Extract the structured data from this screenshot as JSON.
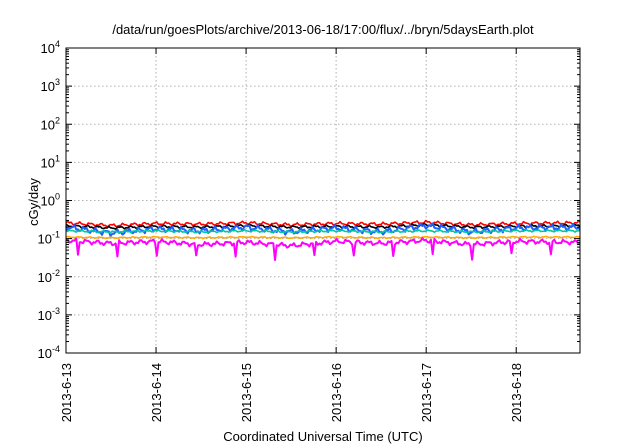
{
  "chart_data": {
    "type": "line",
    "title": "/data/run/goesPlots/archive/2013-06-18/17:00/flux/../bryn/5daysEarth.plot",
    "xlabel": "Coordinated Universal Time (UTC)",
    "ylabel": "cGy/day",
    "yscale": "log",
    "ylim": [
      0.0001,
      10000
    ],
    "xlim": [
      "2013-06-13 00:00",
      "2013-06-18 17:00"
    ],
    "grid": true,
    "legend": "none",
    "y_ticks": [
      {
        "value": 0.0001,
        "base": "10",
        "exp": "-4"
      },
      {
        "value": 0.001,
        "base": "10",
        "exp": "-3"
      },
      {
        "value": 0.01,
        "base": "10",
        "exp": "-2"
      },
      {
        "value": 0.1,
        "base": "10",
        "exp": "-1"
      },
      {
        "value": 1,
        "base": "10",
        "exp": "0"
      },
      {
        "value": 10,
        "base": "10",
        "exp": "1"
      },
      {
        "value": 100,
        "base": "10",
        "exp": "2"
      },
      {
        "value": 1000,
        "base": "10",
        "exp": "3"
      },
      {
        "value": 10000,
        "base": "10",
        "exp": "4"
      }
    ],
    "x_ticks": [
      "2013-6-13",
      "2013-6-14",
      "2013-6-15",
      "2013-6-16",
      "2013-6-17",
      "2013-6-18"
    ],
    "series": [
      {
        "color": "#ff0000",
        "x": [
          "2013-06-13 00:00",
          "2013-06-13 12:00",
          "2013-06-14 00:00",
          "2013-06-14 12:00",
          "2013-06-15 00:00",
          "2013-06-15 12:00",
          "2013-06-16 00:00",
          "2013-06-16 12:00",
          "2013-06-17 00:00",
          "2013-06-17 12:00",
          "2013-06-18 00:00",
          "2013-06-18 17:00"
        ],
        "y": [
          0.26,
          0.22,
          0.25,
          0.24,
          0.26,
          0.23,
          0.25,
          0.24,
          0.27,
          0.23,
          0.25,
          0.26
        ]
      },
      {
        "color": "#000000",
        "x": [
          "2013-06-13 00:00",
          "2013-06-13 12:00",
          "2013-06-14 00:00",
          "2013-06-14 12:00",
          "2013-06-15 00:00",
          "2013-06-15 12:00",
          "2013-06-16 00:00",
          "2013-06-16 12:00",
          "2013-06-17 00:00",
          "2013-06-17 12:00",
          "2013-06-18 00:00",
          "2013-06-18 17:00"
        ],
        "y": [
          0.22,
          0.19,
          0.21,
          0.2,
          0.22,
          0.2,
          0.21,
          0.2,
          0.23,
          0.2,
          0.21,
          0.22
        ]
      },
      {
        "color": "#1f5fff",
        "x": [
          "2013-06-13 00:00",
          "2013-06-13 12:00",
          "2013-06-14 00:00",
          "2013-06-14 12:00",
          "2013-06-15 00:00",
          "2013-06-15 12:00",
          "2013-06-16 00:00",
          "2013-06-16 12:00",
          "2013-06-17 00:00",
          "2013-06-17 12:00",
          "2013-06-18 00:00",
          "2013-06-18 17:00"
        ],
        "y": [
          0.2,
          0.14,
          0.18,
          0.16,
          0.2,
          0.15,
          0.19,
          0.15,
          0.22,
          0.15,
          0.19,
          0.2
        ]
      },
      {
        "color": "#00c8a0",
        "x": [
          "2013-06-13 00:00",
          "2013-06-13 12:00",
          "2013-06-14 00:00",
          "2013-06-14 12:00",
          "2013-06-15 00:00",
          "2013-06-15 12:00",
          "2013-06-16 00:00",
          "2013-06-16 12:00",
          "2013-06-17 00:00",
          "2013-06-17 12:00",
          "2013-06-18 00:00",
          "2013-06-18 17:00"
        ],
        "y": [
          0.16,
          0.15,
          0.16,
          0.15,
          0.16,
          0.15,
          0.16,
          0.15,
          0.16,
          0.15,
          0.16,
          0.16
        ]
      },
      {
        "color": "#ffaa00",
        "x": [
          "2013-06-13 00:00",
          "2013-06-13 12:00",
          "2013-06-14 00:00",
          "2013-06-14 12:00",
          "2013-06-15 00:00",
          "2013-06-15 12:00",
          "2013-06-16 00:00",
          "2013-06-16 12:00",
          "2013-06-17 00:00",
          "2013-06-17 12:00",
          "2013-06-18 00:00",
          "2013-06-18 17:00"
        ],
        "y": [
          0.11,
          0.105,
          0.11,
          0.105,
          0.11,
          0.105,
          0.11,
          0.105,
          0.11,
          0.105,
          0.11,
          0.11
        ]
      },
      {
        "color": "#ff00ff",
        "x": [
          "2013-06-13 00:00",
          "2013-06-13 12:00",
          "2013-06-14 00:00",
          "2013-06-14 12:00",
          "2013-06-15 00:00",
          "2013-06-15 12:00",
          "2013-06-16 00:00",
          "2013-06-16 12:00",
          "2013-06-17 00:00",
          "2013-06-17 12:00",
          "2013-06-18 00:00",
          "2013-06-18 17:00"
        ],
        "y": [
          0.09,
          0.075,
          0.085,
          0.07,
          0.08,
          0.065,
          0.085,
          0.075,
          0.09,
          0.07,
          0.085,
          0.08
        ]
      }
    ]
  }
}
